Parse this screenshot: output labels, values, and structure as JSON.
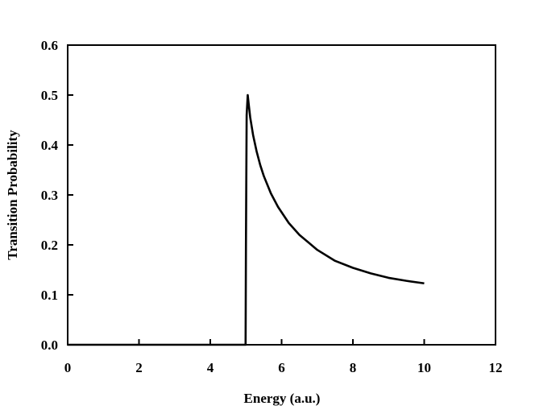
{
  "chart_data": {
    "type": "line",
    "title": "",
    "xlabel": "Energy (a.u.)",
    "ylabel": "Transition Probability",
    "xlim": [
      0,
      12
    ],
    "ylim": [
      0,
      0.6
    ],
    "xticks": [
      0,
      2,
      4,
      6,
      8,
      10,
      12
    ],
    "yticks": [
      0.0,
      0.1,
      0.2,
      0.3,
      0.4,
      0.5,
      0.6
    ],
    "xtick_labels": [
      "0",
      "2",
      "4",
      "6",
      "8",
      "10",
      "12"
    ],
    "ytick_labels": [
      "0.0",
      "0.1",
      "0.2",
      "0.3",
      "0.4",
      "0.5",
      "0.6"
    ],
    "grid": false,
    "legend": "none",
    "line_color": "#000000",
    "series": [
      {
        "x": [
          0,
          4.99,
          5.0,
          5.02,
          5.05,
          5.08,
          5.12,
          5.2,
          5.3,
          5.4,
          5.5,
          5.7,
          5.9,
          6.2,
          6.5,
          7.0,
          7.5,
          8.0,
          8.5,
          9.0,
          9.5,
          10.0
        ],
        "y": [
          0,
          0,
          0.2,
          0.46,
          0.5,
          0.48,
          0.455,
          0.42,
          0.387,
          0.36,
          0.338,
          0.303,
          0.276,
          0.244,
          0.22,
          0.19,
          0.168,
          0.154,
          0.143,
          0.134,
          0.128,
          0.123
        ]
      }
    ]
  }
}
